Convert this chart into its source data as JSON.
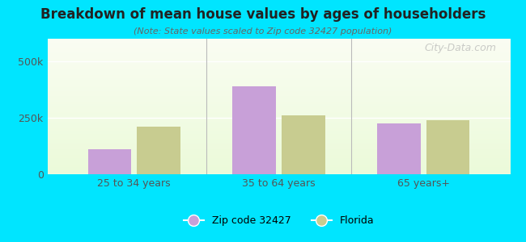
{
  "title": "Breakdown of mean house values by ages of householders",
  "subtitle": "(Note: State values scaled to Zip code 32427 population)",
  "categories": [
    "25 to 34 years",
    "35 to 64 years",
    "65 years+"
  ],
  "zip_values": [
    110000,
    390000,
    225000
  ],
  "florida_values": [
    210000,
    260000,
    240000
  ],
  "zip_color": "#c8a0d8",
  "florida_color": "#c8cc90",
  "background_outer": "#00e5ff",
  "ylim": [
    0,
    600000
  ],
  "yticks": [
    0,
    250000,
    500000
  ],
  "ytick_labels": [
    "0",
    "250k",
    "500k"
  ],
  "legend_zip_label": "Zip code 32427",
  "legend_florida_label": "Florida",
  "watermark": "City-Data.com"
}
